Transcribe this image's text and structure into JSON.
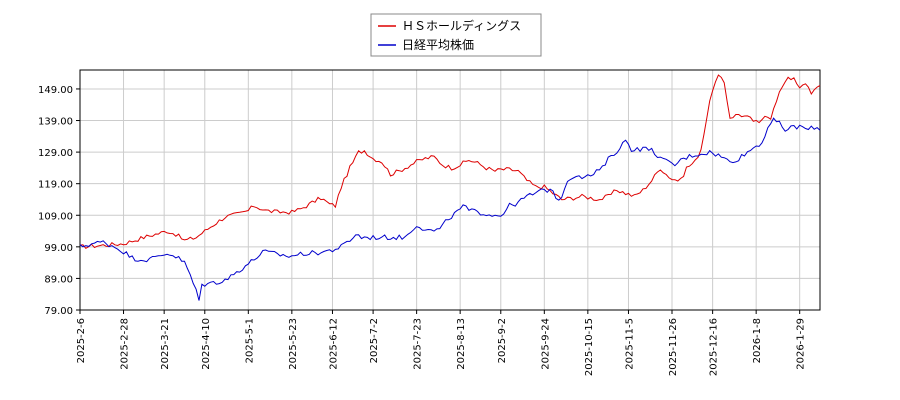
{
  "chart_data": {
    "type": "line",
    "title": "",
    "xlabel": "",
    "ylabel": "",
    "ylim": [
      79.0,
      155.0
    ],
    "grid": true,
    "legend_position": "top-center",
    "y_ticks": [
      "149.00",
      "139.00",
      "129.00",
      "119.00",
      "109.00",
      "99.00",
      "89.00",
      "79.00"
    ],
    "y_tick_values": [
      149,
      139,
      129,
      119,
      109,
      99,
      89,
      79
    ],
    "x_ticks": [
      "2025-2-6",
      "2025-2-28",
      "2025-3-21",
      "2025-4-10",
      "2025-5-1",
      "2025-5-23",
      "2025-6-12",
      "2025-7-2",
      "2025-7-23",
      "2025-8-13",
      "2025-9-2",
      "2025-9-24",
      "2025-10-15",
      "2025-11-5",
      "2025-11-26",
      "2025-12-16",
      "2026-1-8",
      "2026-1-29"
    ],
    "x_tick_index": [
      0,
      15,
      29,
      43,
      58,
      73,
      87,
      101,
      116,
      131,
      145,
      160,
      175,
      189,
      204,
      218,
      233,
      248
    ],
    "n_points": 256,
    "series": [
      {
        "name": "ＨＳホールディングス",
        "color": "#dd0000",
        "anchors": [
          [
            0,
            99
          ],
          [
            8,
            99.5
          ],
          [
            15,
            100
          ],
          [
            22,
            102
          ],
          [
            26,
            103
          ],
          [
            30,
            104
          ],
          [
            33,
            103
          ],
          [
            36,
            101
          ],
          [
            40,
            102
          ],
          [
            43,
            104
          ],
          [
            46,
            106
          ],
          [
            50,
            108.5
          ],
          [
            55,
            109.5
          ],
          [
            58,
            110.5
          ],
          [
            60,
            112
          ],
          [
            64,
            110.5
          ],
          [
            68,
            110
          ],
          [
            73,
            110
          ],
          [
            76,
            111
          ],
          [
            80,
            113
          ],
          [
            83,
            114.5
          ],
          [
            86,
            112.5
          ],
          [
            88,
            112
          ],
          [
            90,
            118
          ],
          [
            93,
            124
          ],
          [
            96,
            129
          ],
          [
            98,
            129.5
          ],
          [
            101,
            127
          ],
          [
            104,
            126
          ],
          [
            107,
            122
          ],
          [
            110,
            123
          ],
          [
            113,
            124.5
          ],
          [
            116,
            126
          ],
          [
            119,
            127
          ],
          [
            122,
            127.5
          ],
          [
            125,
            125
          ],
          [
            128,
            124
          ],
          [
            131,
            125
          ],
          [
            134,
            126.5
          ],
          [
            137,
            125.5
          ],
          [
            140,
            124
          ],
          [
            143,
            123
          ],
          [
            145,
            123.5
          ],
          [
            148,
            123.5
          ],
          [
            151,
            123
          ],
          [
            154,
            120
          ],
          [
            157,
            118
          ],
          [
            160,
            118
          ],
          [
            163,
            116
          ],
          [
            166,
            114
          ],
          [
            170,
            114.5
          ],
          [
            173,
            115
          ],
          [
            176,
            114.5
          ],
          [
            179,
            114
          ],
          [
            182,
            115
          ],
          [
            185,
            117
          ],
          [
            188,
            116
          ],
          [
            191,
            115
          ],
          [
            194,
            117
          ],
          [
            197,
            120
          ],
          [
            200,
            124
          ],
          [
            202,
            122
          ],
          [
            204,
            120.5
          ],
          [
            207,
            120
          ],
          [
            209,
            124
          ],
          [
            212,
            126
          ],
          [
            214,
            130
          ],
          [
            216,
            140
          ],
          [
            218,
            149
          ],
          [
            220,
            153
          ],
          [
            222,
            151
          ],
          [
            224,
            140
          ],
          [
            227,
            141
          ],
          [
            230,
            140
          ],
          [
            232,
            139
          ],
          [
            234,
            138
          ],
          [
            236,
            141
          ],
          [
            238,
            140
          ],
          [
            240,
            145
          ],
          [
            242,
            150
          ],
          [
            244,
            153
          ],
          [
            246,
            152
          ],
          [
            248,
            149
          ],
          [
            250,
            151
          ],
          [
            252,
            148
          ],
          [
            254,
            149
          ],
          [
            256,
            151
          ],
          [
            257,
            153
          ],
          [
            259,
            150
          ]
        ],
        "noise": 0.7
      },
      {
        "name": "日経平均株価",
        "color": "#0000cc",
        "anchors": [
          [
            0,
            99
          ],
          [
            4,
            100
          ],
          [
            8,
            100.5
          ],
          [
            12,
            99
          ],
          [
            15,
            97.5
          ],
          [
            18,
            95.5
          ],
          [
            21,
            95
          ],
          [
            24,
            95
          ],
          [
            27,
            96
          ],
          [
            30,
            97
          ],
          [
            33,
            96
          ],
          [
            36,
            94
          ],
          [
            38,
            90
          ],
          [
            40,
            85
          ],
          [
            41,
            82
          ],
          [
            42,
            87
          ],
          [
            45,
            87.5
          ],
          [
            48,
            88
          ],
          [
            51,
            89
          ],
          [
            54,
            91
          ],
          [
            57,
            93
          ],
          [
            60,
            95
          ],
          [
            63,
            97.5
          ],
          [
            66,
            97
          ],
          [
            69,
            96.5
          ],
          [
            72,
            96
          ],
          [
            75,
            96.5
          ],
          [
            78,
            97
          ],
          [
            81,
            97
          ],
          [
            84,
            97.5
          ],
          [
            87,
            98
          ],
          [
            90,
            99
          ],
          [
            93,
            101
          ],
          [
            95,
            103
          ],
          [
            97,
            102
          ],
          [
            100,
            102
          ],
          [
            104,
            102
          ],
          [
            108,
            102
          ],
          [
            112,
            102
          ],
          [
            114,
            104
          ],
          [
            116,
            106
          ],
          [
            118,
            105
          ],
          [
            121,
            104
          ],
          [
            124,
            104.5
          ],
          [
            127,
            108
          ],
          [
            130,
            110
          ],
          [
            132,
            112
          ],
          [
            134,
            110.5
          ],
          [
            137,
            110
          ],
          [
            140,
            109.5
          ],
          [
            143,
            109
          ],
          [
            145,
            109
          ],
          [
            148,
            112
          ],
          [
            151,
            113
          ],
          [
            154,
            115
          ],
          [
            157,
            116
          ],
          [
            160,
            117
          ],
          [
            163,
            117
          ],
          [
            165,
            113
          ],
          [
            168,
            120
          ],
          [
            171,
            122
          ],
          [
            174,
            121
          ],
          [
            177,
            122
          ],
          [
            180,
            124
          ],
          [
            183,
            128
          ],
          [
            186,
            130
          ],
          [
            188,
            133
          ],
          [
            190,
            130
          ],
          [
            193,
            130
          ],
          [
            196,
            130
          ],
          [
            198,
            129
          ],
          [
            200,
            127
          ],
          [
            202,
            126
          ],
          [
            205,
            125
          ],
          [
            208,
            127
          ],
          [
            211,
            128
          ],
          [
            214,
            128.5
          ],
          [
            217,
            129
          ],
          [
            220,
            128
          ],
          [
            222,
            127
          ],
          [
            224,
            126
          ],
          [
            227,
            127
          ],
          [
            230,
            129
          ],
          [
            233,
            131
          ],
          [
            235,
            132
          ],
          [
            237,
            137
          ],
          [
            239,
            139
          ],
          [
            241,
            138
          ],
          [
            243,
            136
          ],
          [
            246,
            137
          ],
          [
            249,
            137
          ],
          [
            251,
            136
          ],
          [
            253,
            137
          ],
          [
            255,
            136
          ],
          [
            257,
            140
          ],
          [
            259,
            139
          ]
        ],
        "noise": 0.8
      }
    ]
  }
}
